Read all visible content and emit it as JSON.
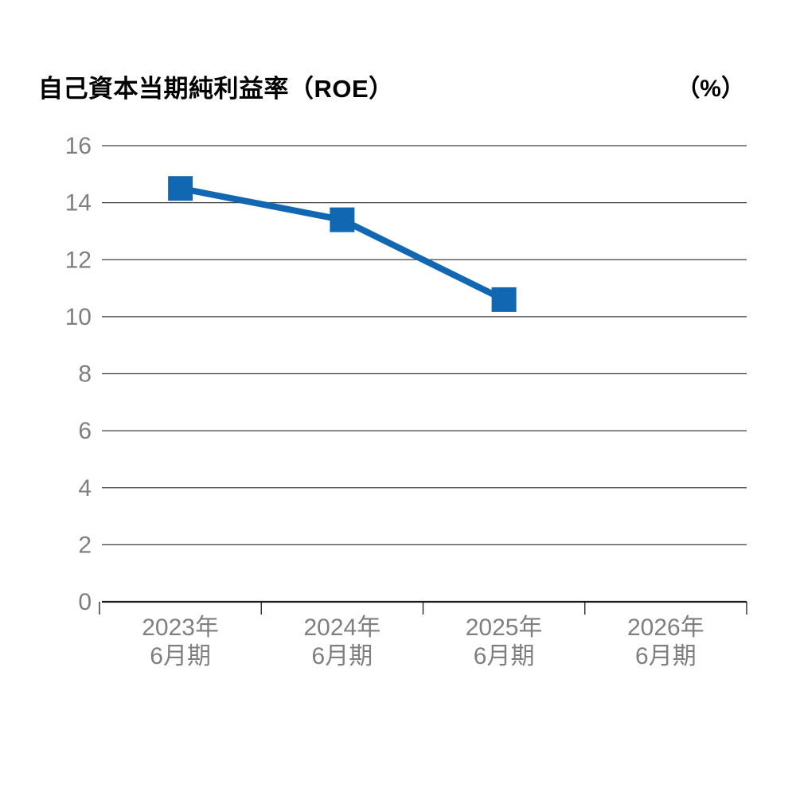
{
  "header": {
    "title": "自己資本当期純利益率（ROE）",
    "unit_label": "（%）"
  },
  "chart_data": {
    "type": "line",
    "title": "自己資本当期純利益率（ROE）",
    "unit": "%",
    "categories": [
      [
        "2023年",
        "6月期"
      ],
      [
        "2024年",
        "6月期"
      ],
      [
        "2025年",
        "6月期"
      ],
      [
        "2026年",
        "6月期"
      ]
    ],
    "series": [
      {
        "name": "ROE",
        "values": [
          14.5,
          13.4,
          10.6,
          null
        ]
      }
    ],
    "ylim": [
      0,
      16
    ],
    "yticks": [
      0,
      2,
      4,
      6,
      8,
      10,
      12,
      14,
      16
    ],
    "grid": true,
    "legend_position": "none",
    "marker": "square",
    "colors": {
      "line": "#1167b1",
      "marker": "#1167b1",
      "grid": "#3f3f3f",
      "axis": "#1a1a1a",
      "tick_label": "#7f7f7f",
      "title": "#000000"
    }
  }
}
